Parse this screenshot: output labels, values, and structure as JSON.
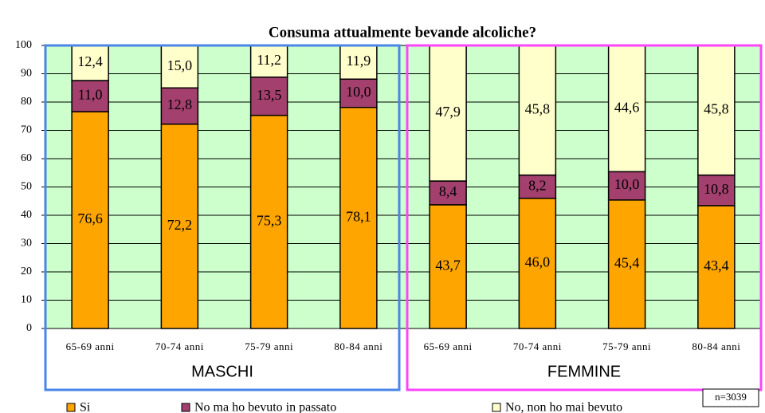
{
  "chart_data": {
    "type": "stacked_bar",
    "title": "Consuma attualmente bevande alcoliche?",
    "groups": [
      {
        "label": "MASCHI",
        "color": "#4a86e8",
        "categories": [
          "65-69 anni",
          "70-74 anni",
          "75-79 anni",
          "80-84 anni"
        ]
      },
      {
        "label": "FEMMINE",
        "color": "#ff44ff",
        "categories": [
          "65-69 anni",
          "70-74 anni",
          "75-79 anni",
          "80-84 anni"
        ]
      }
    ],
    "series": [
      {
        "name": "Si",
        "color": "#ffa500",
        "values": [
          76.6,
          72.2,
          75.3,
          78.1,
          43.7,
          46.0,
          45.4,
          43.4
        ],
        "value_labels": [
          "76,6",
          "72,2",
          "75,3",
          "78,1",
          "43,7",
          "46,0",
          "45,4",
          "43,4"
        ]
      },
      {
        "name": "No ma ho bevuto in passato",
        "color": "#a3406e",
        "values": [
          11.0,
          12.8,
          13.5,
          10.0,
          8.4,
          8.2,
          10.0,
          10.8
        ],
        "value_labels": [
          "11,0",
          "12,8",
          "13,5",
          "10,0",
          "8,4",
          "8,2",
          "10,0",
          "10,8"
        ]
      },
      {
        "name": "No, non ho mai bevuto",
        "color": "#ffffcc",
        "values": [
          12.4,
          15.0,
          11.2,
          11.9,
          47.9,
          45.8,
          44.6,
          45.8
        ],
        "value_labels": [
          "12,4",
          "15,0",
          "11,2",
          "11,9",
          "47,9",
          "45,8",
          "44,6",
          "45,8"
        ]
      }
    ],
    "ylim": [
      0,
      100
    ],
    "yticks": [
      0,
      10,
      20,
      30,
      40,
      50,
      60,
      70,
      80,
      90,
      100
    ],
    "grid": true,
    "plot_background": "#ccffcc",
    "annotation": "n=3039"
  }
}
